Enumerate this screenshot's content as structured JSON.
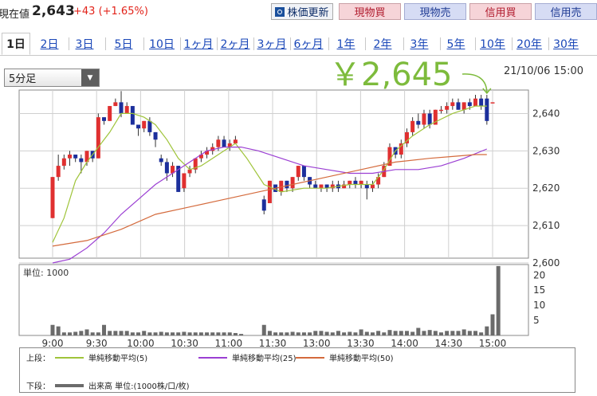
{
  "header": {
    "current_label": "現在値",
    "current_value": "2,643",
    "change": "+43 (+1.65%)",
    "refresh_label": "株価更新",
    "buttons": [
      "現物買",
      "現物売",
      "信用買",
      "信用売"
    ]
  },
  "tabs": [
    "1日",
    "2日",
    "3日",
    "5日",
    "10日",
    "1ヶ月",
    "2ヶ月",
    "3ヶ月",
    "6ヶ月",
    "1年",
    "2年",
    "3年",
    "5年",
    "10年",
    "20年",
    "30年"
  ],
  "active_tab": "1日",
  "interval_select": "5分足",
  "big_price": "￥2,645",
  "timestamp": "21/10/06 15:00",
  "colors": {
    "up": "#e03030",
    "down": "#1c2f9c",
    "ma5": "#9fc43a",
    "ma25": "#9b3fd3",
    "ma50": "#d46a3c",
    "volume": "#6b6b6b",
    "accent": "#7dbb3c"
  },
  "legend": {
    "upper_label": "上段：",
    "lower_label": "下段：",
    "ma5": "単純移動平均(5)",
    "ma25": "単純移動平均(25)",
    "ma50": "単純移動平均(50)",
    "volume": "出来高 単位:(1000株/口/枚)"
  },
  "chart_data": {
    "type": "candlestick",
    "time_ticks": [
      "9:00",
      "9:30",
      "10:00",
      "10:30",
      "11:00",
      "11:30",
      "13:00",
      "13:30",
      "14:00",
      "14:30",
      "15:00"
    ],
    "price_axis": {
      "ticks": [
        2600,
        2610,
        2620,
        2630,
        2640
      ],
      "ylim": [
        2600,
        2645
      ]
    },
    "volume_axis": {
      "unit_label": "単位: 1000",
      "ticks": [
        5,
        10,
        15,
        20
      ],
      "ylim": [
        0,
        23.5
      ]
    },
    "candles": [
      {
        "t": 0,
        "o": 2612,
        "c": 2623,
        "h": 2623,
        "l": 2612
      },
      {
        "t": 1,
        "o": 2623,
        "c": 2626,
        "h": 2629,
        "l": 2622
      },
      {
        "t": 2,
        "o": 2626,
        "c": 2628,
        "h": 2629,
        "l": 2625
      },
      {
        "t": 3,
        "o": 2628,
        "c": 2629,
        "h": 2630,
        "l": 2626
      },
      {
        "t": 4,
        "o": 2629,
        "c": 2628,
        "h": 2629,
        "l": 2627
      },
      {
        "t": 5,
        "o": 2628,
        "c": 2627,
        "h": 2629,
        "l": 2624
      },
      {
        "t": 6,
        "o": 2627,
        "c": 2630,
        "h": 2630,
        "l": 2626
      },
      {
        "t": 7,
        "o": 2630,
        "c": 2628,
        "h": 2630,
        "l": 2627
      },
      {
        "t": 8,
        "o": 2628,
        "c": 2639,
        "h": 2640,
        "l": 2628
      },
      {
        "t": 9,
        "o": 2639,
        "c": 2638,
        "h": 2639,
        "l": 2637
      },
      {
        "t": 10,
        "o": 2638,
        "c": 2642,
        "h": 2642,
        "l": 2638
      },
      {
        "t": 11,
        "o": 2642,
        "c": 2643,
        "h": 2644,
        "l": 2642
      },
      {
        "t": 12,
        "o": 2643,
        "c": 2640,
        "h": 2646,
        "l": 2639
      },
      {
        "t": 13,
        "o": 2640,
        "c": 2642,
        "h": 2643,
        "l": 2640
      },
      {
        "t": 14,
        "o": 2642,
        "c": 2637,
        "h": 2642,
        "l": 2637
      },
      {
        "t": 15,
        "o": 2637,
        "c": 2636,
        "h": 2637,
        "l": 2634
      },
      {
        "t": 16,
        "o": 2636,
        "c": 2638,
        "h": 2638,
        "l": 2635
      },
      {
        "t": 17,
        "o": 2638,
        "c": 2635,
        "h": 2639,
        "l": 2634
      },
      {
        "t": 18,
        "o": 2635,
        "c": 2633,
        "h": 2635,
        "l": 2631
      },
      {
        "t": 19,
        "o": 2628,
        "c": 2627,
        "h": 2629,
        "l": 2626
      },
      {
        "t": 20,
        "o": 2627,
        "c": 2624,
        "h": 2628,
        "l": 2622
      },
      {
        "t": 21,
        "o": 2624,
        "c": 2626,
        "h": 2627,
        "l": 2623
      },
      {
        "t": 22,
        "o": 2626,
        "c": 2619,
        "h": 2626,
        "l": 2619
      },
      {
        "t": 23,
        "o": 2620,
        "c": 2624,
        "h": 2624,
        "l": 2619
      },
      {
        "t": 24,
        "o": 2624,
        "c": 2625,
        "h": 2626,
        "l": 2623
      },
      {
        "t": 25,
        "o": 2625,
        "c": 2628,
        "h": 2628,
        "l": 2624
      },
      {
        "t": 26,
        "o": 2628,
        "c": 2629,
        "h": 2630,
        "l": 2627
      },
      {
        "t": 27,
        "o": 2629,
        "c": 2630,
        "h": 2631,
        "l": 2628
      },
      {
        "t": 28,
        "o": 2630,
        "c": 2631,
        "h": 2632,
        "l": 2629
      },
      {
        "t": 29,
        "o": 2631,
        "c": 2633,
        "h": 2634,
        "l": 2630
      },
      {
        "t": 30,
        "o": 2633,
        "c": 2631,
        "h": 2634,
        "l": 2631
      },
      {
        "t": 31,
        "o": 2631,
        "c": 2632,
        "h": 2633,
        "l": 2630
      },
      {
        "t": 32,
        "o": 2632,
        "c": 2633,
        "h": 2634,
        "l": 2632
      },
      {
        "t": 37,
        "o": 2617,
        "c": 2614,
        "h": 2618,
        "l": 2613
      },
      {
        "t": 38,
        "o": 2616,
        "c": 2622,
        "h": 2622,
        "l": 2616
      },
      {
        "t": 39,
        "o": 2621,
        "c": 2619,
        "h": 2621,
        "l": 2619
      },
      {
        "t": 40,
        "o": 2619,
        "c": 2622,
        "h": 2622,
        "l": 2618
      },
      {
        "t": 41,
        "o": 2622,
        "c": 2620,
        "h": 2622,
        "l": 2619
      },
      {
        "t": 42,
        "o": 2620,
        "c": 2623,
        "h": 2623,
        "l": 2619
      },
      {
        "t": 43,
        "o": 2623,
        "c": 2626,
        "h": 2626,
        "l": 2622
      },
      {
        "t": 44,
        "o": 2626,
        "c": 2623,
        "h": 2626,
        "l": 2622
      },
      {
        "t": 45,
        "o": 2623,
        "c": 2621,
        "h": 2623,
        "l": 2620
      },
      {
        "t": 46,
        "o": 2621,
        "c": 2620,
        "h": 2622,
        "l": 2620
      },
      {
        "t": 47,
        "o": 2620,
        "c": 2621,
        "h": 2621,
        "l": 2619
      },
      {
        "t": 48,
        "o": 2621,
        "c": 2620,
        "h": 2621,
        "l": 2619
      },
      {
        "t": 49,
        "o": 2620,
        "c": 2621,
        "h": 2622,
        "l": 2619
      },
      {
        "t": 50,
        "o": 2621,
        "c": 2620,
        "h": 2622,
        "l": 2619
      },
      {
        "t": 51,
        "o": 2620,
        "c": 2621,
        "h": 2622,
        "l": 2620
      },
      {
        "t": 52,
        "o": 2621,
        "c": 2622,
        "h": 2622,
        "l": 2620
      },
      {
        "t": 53,
        "o": 2622,
        "c": 2621,
        "h": 2623,
        "l": 2620
      },
      {
        "t": 54,
        "o": 2621,
        "c": 2622,
        "h": 2622,
        "l": 2620
      },
      {
        "t": 55,
        "o": 2621,
        "c": 2620,
        "h": 2622,
        "l": 2617
      },
      {
        "t": 56,
        "o": 2620,
        "c": 2621,
        "h": 2622,
        "l": 2619
      },
      {
        "t": 57,
        "o": 2621,
        "c": 2623,
        "h": 2624,
        "l": 2620
      },
      {
        "t": 58,
        "o": 2623,
        "c": 2626,
        "h": 2627,
        "l": 2623
      },
      {
        "t": 59,
        "o": 2626,
        "c": 2631,
        "h": 2632,
        "l": 2626
      },
      {
        "t": 60,
        "o": 2631,
        "c": 2629,
        "h": 2631,
        "l": 2628
      },
      {
        "t": 61,
        "o": 2629,
        "c": 2632,
        "h": 2633,
        "l": 2628
      },
      {
        "t": 62,
        "o": 2632,
        "c": 2635,
        "h": 2636,
        "l": 2631
      },
      {
        "t": 63,
        "o": 2635,
        "c": 2638,
        "h": 2639,
        "l": 2634
      },
      {
        "t": 64,
        "o": 2638,
        "c": 2637,
        "h": 2640,
        "l": 2636
      },
      {
        "t": 65,
        "o": 2637,
        "c": 2640,
        "h": 2641,
        "l": 2636
      },
      {
        "t": 66,
        "o": 2640,
        "c": 2637,
        "h": 2641,
        "l": 2636
      },
      {
        "t": 67,
        "o": 2637,
        "c": 2641,
        "h": 2641,
        "l": 2637
      },
      {
        "t": 68,
        "o": 2641,
        "c": 2641,
        "h": 2642,
        "l": 2640
      },
      {
        "t": 69,
        "o": 2641,
        "c": 2642,
        "h": 2643,
        "l": 2640
      },
      {
        "t": 70,
        "o": 2642,
        "c": 2643,
        "h": 2644,
        "l": 2641
      },
      {
        "t": 71,
        "o": 2643,
        "c": 2641,
        "h": 2644,
        "l": 2641
      },
      {
        "t": 72,
        "o": 2641,
        "c": 2643,
        "h": 2643,
        "l": 2640
      },
      {
        "t": 73,
        "o": 2643,
        "c": 2642,
        "h": 2644,
        "l": 2641
      },
      {
        "t": 74,
        "o": 2642,
        "c": 2644,
        "h": 2645,
        "l": 2642
      },
      {
        "t": 75,
        "o": 2644,
        "c": 2642,
        "h": 2645,
        "l": 2641
      },
      {
        "t": 76,
        "o": 2644,
        "c": 2638,
        "h": 2645,
        "l": 2637
      },
      {
        "t": 77,
        "o": 2643,
        "c": 2643,
        "h": 2643,
        "l": 2643
      }
    ],
    "ma5": [
      [
        0,
        2605.5
      ],
      [
        2,
        2612
      ],
      [
        4,
        2622
      ],
      [
        6,
        2627
      ],
      [
        8,
        2631
      ],
      [
        10,
        2635
      ],
      [
        12,
        2640
      ],
      [
        14,
        2640
      ],
      [
        16,
        2639
      ],
      [
        18,
        2637
      ],
      [
        20,
        2633
      ],
      [
        22,
        2628
      ],
      [
        24,
        2625
      ],
      [
        26,
        2626
      ],
      [
        28,
        2628
      ],
      [
        30,
        2630
      ],
      [
        32,
        2632
      ],
      [
        34,
        2628
      ],
      [
        37,
        2621
      ],
      [
        40,
        2619
      ],
      [
        44,
        2620
      ],
      [
        48,
        2620
      ],
      [
        52,
        2621
      ],
      [
        56,
        2621
      ],
      [
        58,
        2625
      ],
      [
        60,
        2630
      ],
      [
        63,
        2634
      ],
      [
        66,
        2637
      ],
      [
        70,
        2640
      ],
      [
        74,
        2642
      ],
      [
        76,
        2642
      ]
    ],
    "ma25": [
      [
        0,
        2600
      ],
      [
        3,
        2601
      ],
      [
        6,
        2604
      ],
      [
        9,
        2608
      ],
      [
        12,
        2613
      ],
      [
        15,
        2617
      ],
      [
        18,
        2621
      ],
      [
        21,
        2624
      ],
      [
        24,
        2627
      ],
      [
        27,
        2630
      ],
      [
        30,
        2631
      ],
      [
        33,
        2631
      ],
      [
        36,
        2630
      ],
      [
        40,
        2628
      ],
      [
        44,
        2626
      ],
      [
        48,
        2625
      ],
      [
        52,
        2624
      ],
      [
        56,
        2624
      ],
      [
        60,
        2625
      ],
      [
        64,
        2625
      ],
      [
        68,
        2626
      ],
      [
        72,
        2628
      ],
      [
        76,
        2630.5
      ]
    ],
    "ma50": [
      [
        0,
        2604.5
      ],
      [
        6,
        2606
      ],
      [
        12,
        2609
      ],
      [
        18,
        2613
      ],
      [
        24,
        2615
      ],
      [
        30,
        2617
      ],
      [
        36,
        2619
      ],
      [
        42,
        2621
      ],
      [
        48,
        2623
      ],
      [
        54,
        2625
      ],
      [
        60,
        2627
      ],
      [
        66,
        2628
      ],
      [
        70,
        2628.5
      ],
      [
        74,
        2629
      ],
      [
        76,
        2629
      ]
    ],
    "volume": [
      3.5,
      3,
      1,
      1,
      1.2,
      1.5,
      2,
      1,
      1,
      3.5,
      1.5,
      1.5,
      1.5,
      1.5,
      1,
      1,
      1.5,
      1,
      1,
      1.2,
      1,
      1,
      1,
      1.2,
      1,
      1,
      1,
      1,
      1,
      1,
      1,
      1,
      0.8,
      0.5,
      0,
      0,
      0,
      3.5,
      1.5,
      1,
      1,
      1,
      1.2,
      1,
      1,
      1,
      1.5,
      1.5,
      1.2,
      1,
      1.5,
      1,
      1.2,
      1,
      2,
      1.2,
      1,
      1.5,
      1,
      1.8,
      1.5,
      1.5,
      1.5,
      1.2,
      2.5,
      1.5,
      1.8,
      1.5,
      1,
      1.5,
      1.5,
      1.5,
      2,
      1.5,
      1.5,
      1,
      3,
      7,
      23
    ]
  }
}
